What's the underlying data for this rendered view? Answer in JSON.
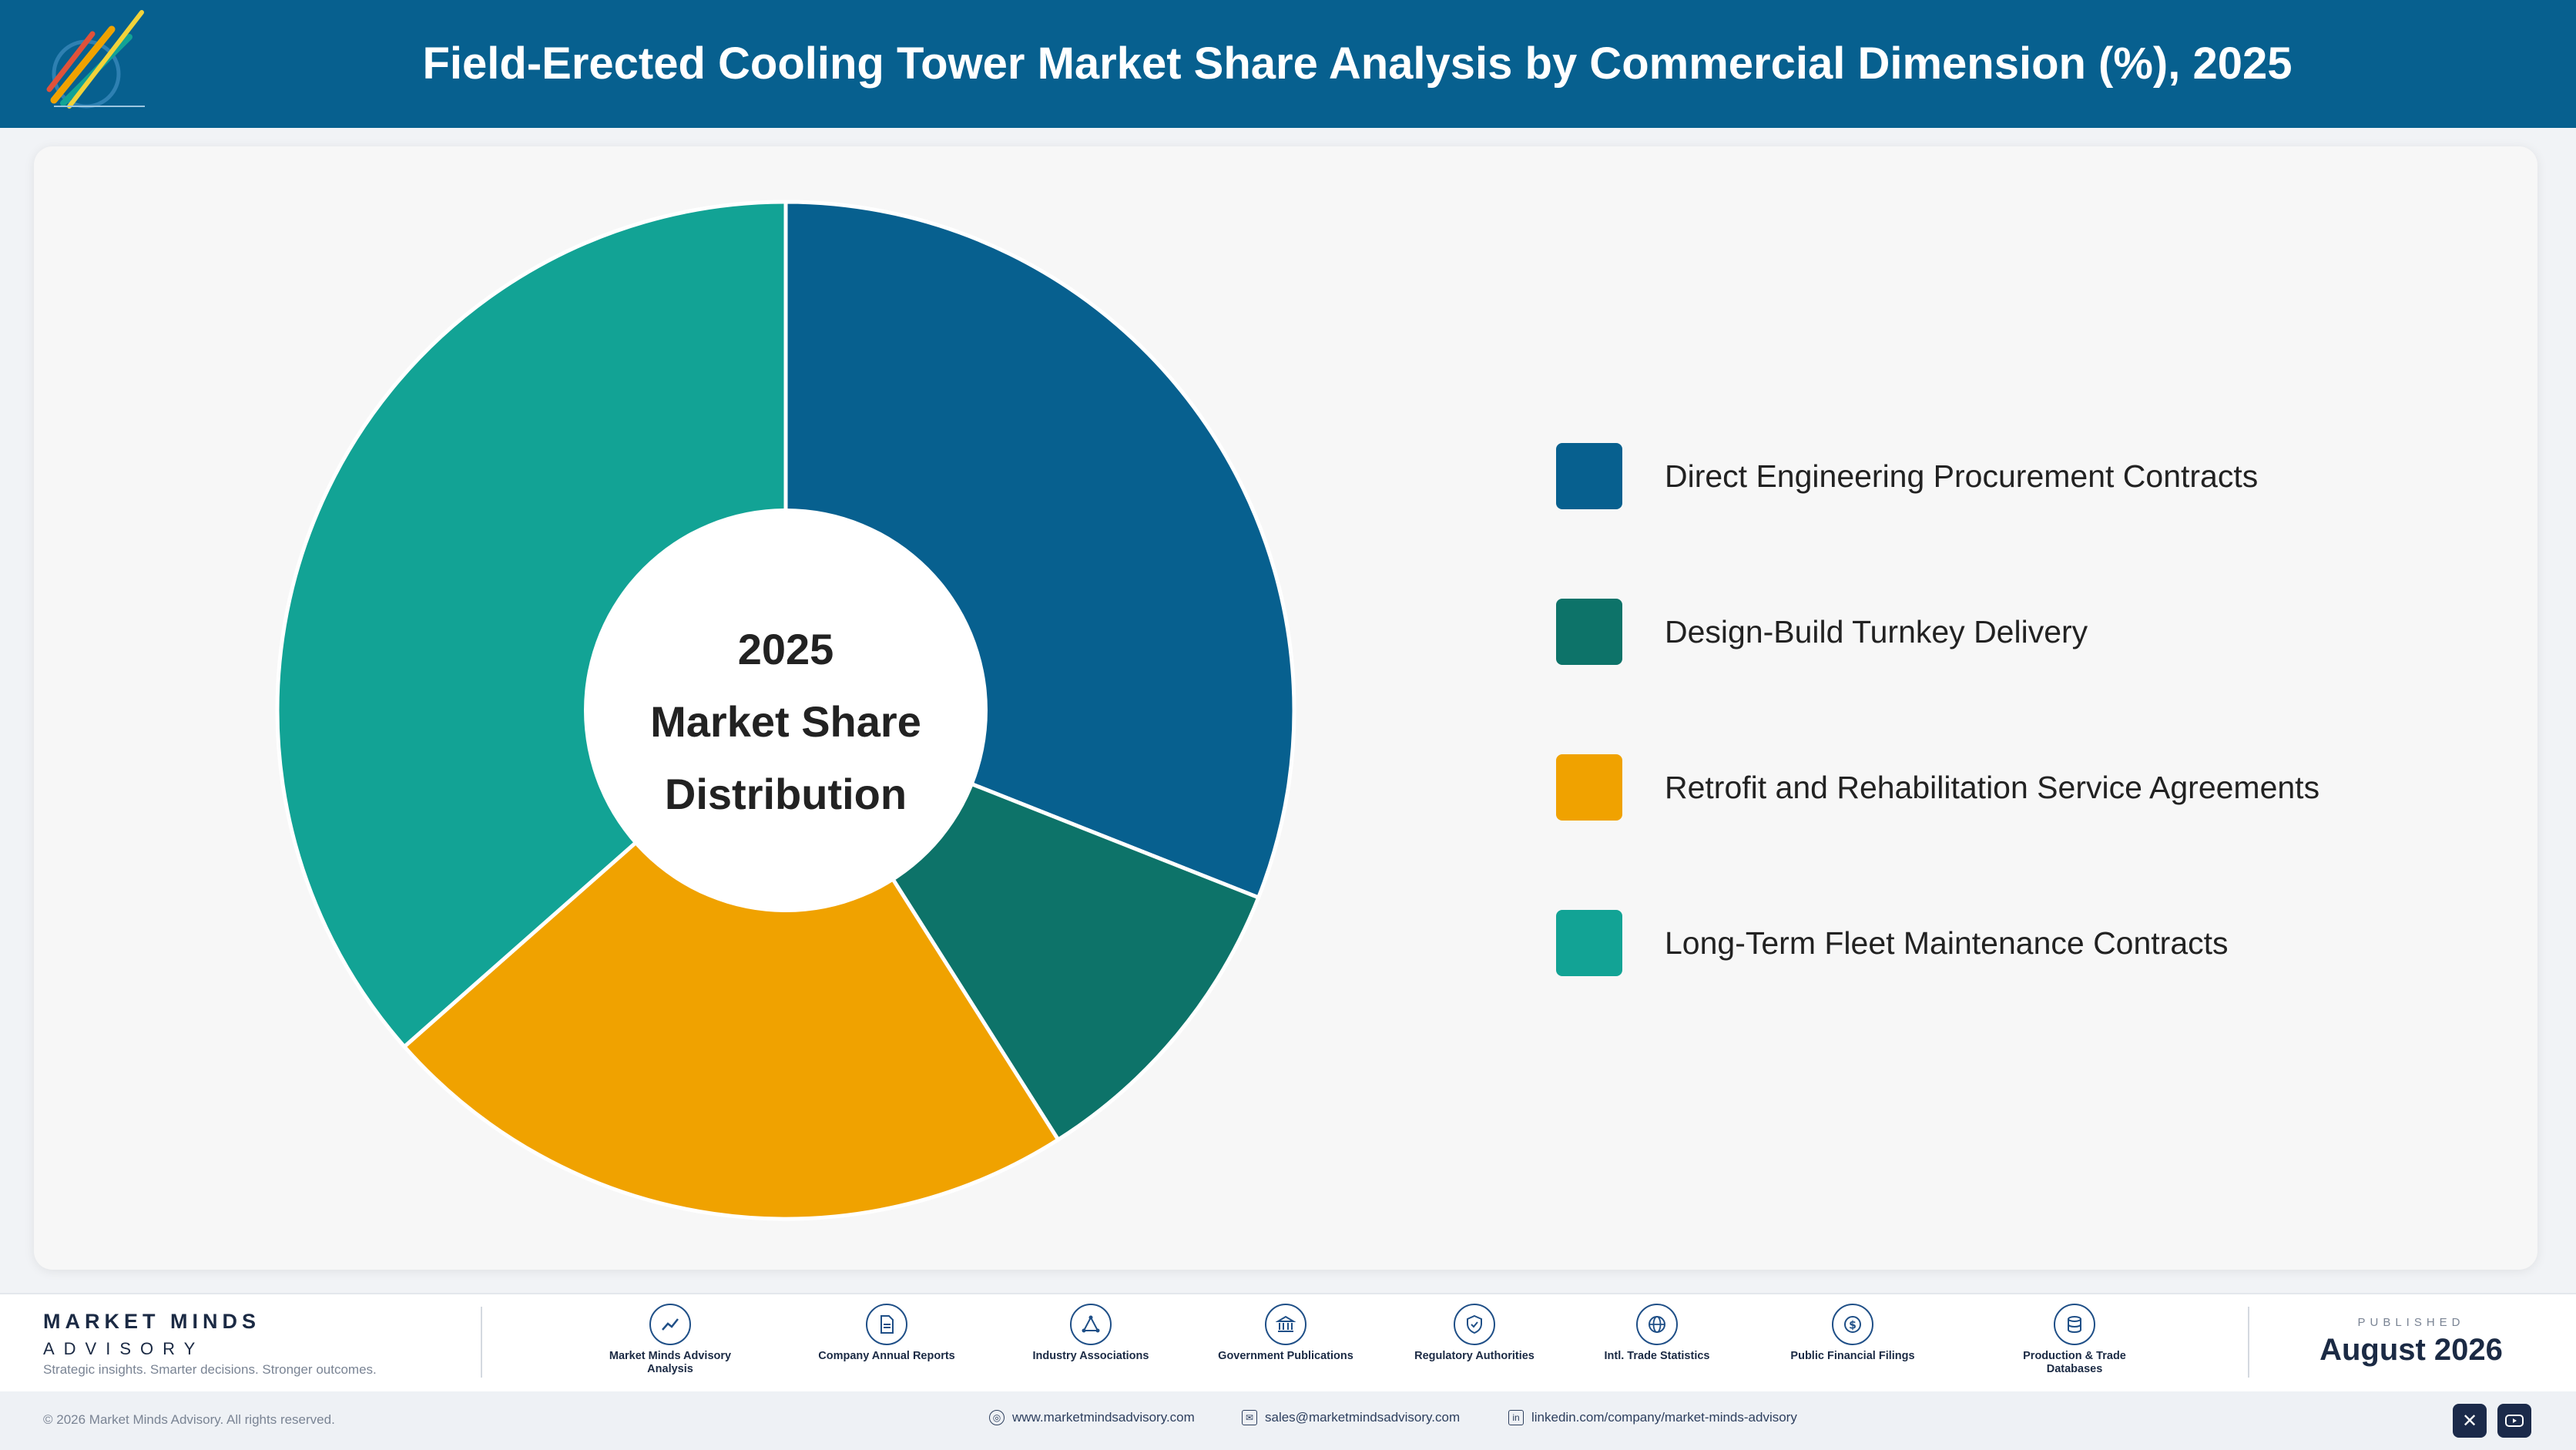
{
  "header": {
    "title": "Field-Erected Cooling Tower Market Share Analysis by Commercial Dimension (%), 2025",
    "logo_icon": "market-minds-logo-icon"
  },
  "colors": {
    "header_bg": "#07608f",
    "segment_1": "#07608f",
    "segment_2": "#0d7369",
    "segment_3": "#f0a200",
    "segment_4": "#12a395"
  },
  "chart_data": {
    "type": "pie",
    "donut": true,
    "center_label": [
      "2025",
      "Market Share",
      "Distribution"
    ],
    "categories": [
      "Direct Engineering Procurement Contracts",
      "Design-Build Turnkey Delivery",
      "Retrofit and Rehabilitation Service Agreements",
      "Long-Term Fleet Maintenance Contracts"
    ],
    "values": [
      31,
      10,
      22.5,
      36.5
    ],
    "colors": [
      "#07608f",
      "#0d7369",
      "#f0a200",
      "#12a395"
    ],
    "legend_placement": "right"
  },
  "footer": {
    "brand_name": "MARKET MINDS",
    "brand_sub": "ADVISORY",
    "tagline": "Strategic insights. Smarter decisions. Stronger outcomes.",
    "sources": [
      {
        "label": "Market Minds Advisory Analysis",
        "icon": "trend-chart-icon"
      },
      {
        "label": "Company Annual Reports",
        "icon": "document-icon"
      },
      {
        "label": "Industry Associations",
        "icon": "network-icon"
      },
      {
        "label": "Government Publications",
        "icon": "government-building-icon"
      },
      {
        "label": "Regulatory Authorities",
        "icon": "shield-check-icon"
      },
      {
        "label": "Intl. Trade Statistics",
        "icon": "globe-icon"
      },
      {
        "label": "Public Financial Filings",
        "icon": "dollar-icon"
      },
      {
        "label": "Production & Trade Databases",
        "icon": "database-icon"
      }
    ],
    "published_label": "PUBLISHED",
    "published_date": "August 2026",
    "copyright": "© 2026 Market Minds Advisory. All rights reserved.",
    "website": "www.marketmindsadvisory.com",
    "email": "sales@marketmindsadvisory.com",
    "linkedin": "linkedin.com/company/market-minds-advisory"
  }
}
